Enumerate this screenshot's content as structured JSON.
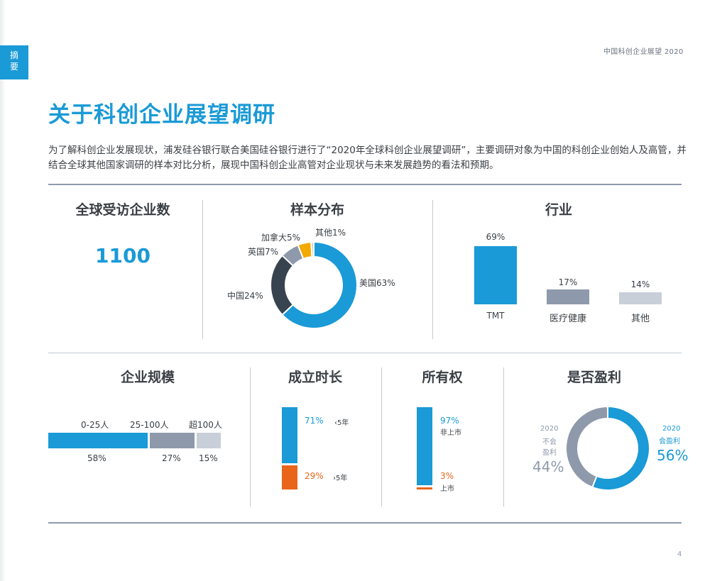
{
  "header": {
    "report_tag": "中国科创企业展望 2020",
    "section_tab_line1": "摘",
    "section_tab_line2": "要",
    "page_number": "4"
  },
  "title": "关于科创企业展望调研",
  "intro": "为了解科创企业发展现状，浦发硅谷银行联合美国硅谷银行进行了“2020年全球科创企业展望调研”，主要调研对象为中国的科创企业创始人及高管，并结合全球其他国家调研的样本对比分析，展现中国科创企业高管对企业现状与未来发展趋势的看法和预期。",
  "colors": {
    "blue": "#1a9ad6",
    "dark": "#37434e",
    "gray": "#8e9aab",
    "light": "#c8cfd9",
    "orange": "#e8651a",
    "yellow": "#f2a900"
  },
  "global_count": {
    "title": "全球受访企业数",
    "value": "1100"
  },
  "sample": {
    "title": "样本分布",
    "slices": [
      {
        "label": "美国63%",
        "value": 63,
        "color": "#1a9ad6"
      },
      {
        "label": "中国24%",
        "value": 24,
        "color": "#37434e"
      },
      {
        "label": "英国7%",
        "value": 7,
        "color": "#8e9aab"
      },
      {
        "label": "加拿大5%",
        "value": 5,
        "color": "#f2a900"
      },
      {
        "label": "其他1%",
        "value": 1,
        "color": "#c8cfd9"
      }
    ]
  },
  "industry": {
    "title": "行业",
    "bars": [
      {
        "label": "TMT",
        "pct_label": "69%",
        "value": 69,
        "color": "#1a9ad6"
      },
      {
        "label": "医疗健康",
        "pct_label": "17%",
        "value": 17,
        "color": "#8e9aab"
      },
      {
        "label": "其他",
        "pct_label": "14%",
        "value": 14,
        "color": "#c8cfd9"
      }
    ]
  },
  "size": {
    "title": "企业规模",
    "segments": [
      {
        "label": "0-25人",
        "pct_label": "58%",
        "value": 58,
        "color": "#1a9ad6"
      },
      {
        "label": "25-100人",
        "pct_label": "27%",
        "value": 27,
        "color": "#8e9aab"
      },
      {
        "label": "超100人",
        "pct_label": "15%",
        "value": 15,
        "color": "#c8cfd9"
      }
    ]
  },
  "age": {
    "title": "成立时长",
    "top": {
      "pct_label": "71%",
      "label": "‹5年",
      "value": 71,
      "color": "#1a9ad6"
    },
    "bottom": {
      "pct_label": "29%",
      "label": "›5年",
      "value": 29,
      "color": "#e8651a"
    }
  },
  "ownership": {
    "title": "所有权",
    "top": {
      "pct_label": "97%",
      "label": "非上市",
      "value": 97,
      "color": "#1a9ad6"
    },
    "bottom": {
      "pct_label": "3%",
      "label": "上市",
      "value": 3,
      "color": "#e8651a"
    }
  },
  "profit": {
    "title": "是否盈利",
    "yes": {
      "line1": "2020",
      "line2": "会盈利",
      "pct_label": "56%",
      "value": 56,
      "color": "#1a9ad6"
    },
    "no": {
      "line1": "2020",
      "line2": "不会",
      "line3": "盈利",
      "pct_label": "44%",
      "value": 44,
      "color": "#8e9aab"
    }
  },
  "chart_data": [
    {
      "type": "pie",
      "title": "样本分布",
      "categories": [
        "美国",
        "中国",
        "英国",
        "加拿大",
        "其他"
      ],
      "values": [
        63,
        24,
        7,
        5,
        1
      ]
    },
    {
      "type": "bar",
      "title": "行业",
      "categories": [
        "TMT",
        "医疗健康",
        "其他"
      ],
      "values": [
        69,
        17,
        14
      ]
    },
    {
      "type": "bar",
      "title": "企业规模",
      "categories": [
        "0-25人",
        "25-100人",
        "超100人"
      ],
      "values": [
        58,
        27,
        15
      ]
    },
    {
      "type": "bar",
      "title": "成立时长",
      "categories": [
        "‹5年",
        "›5年"
      ],
      "values": [
        71,
        29
      ]
    },
    {
      "type": "bar",
      "title": "所有权",
      "categories": [
        "非上市",
        "上市"
      ],
      "values": [
        97,
        3
      ]
    },
    {
      "type": "pie",
      "title": "是否盈利",
      "categories": [
        "会盈利",
        "不会盈利"
      ],
      "values": [
        56,
        44
      ]
    }
  ]
}
